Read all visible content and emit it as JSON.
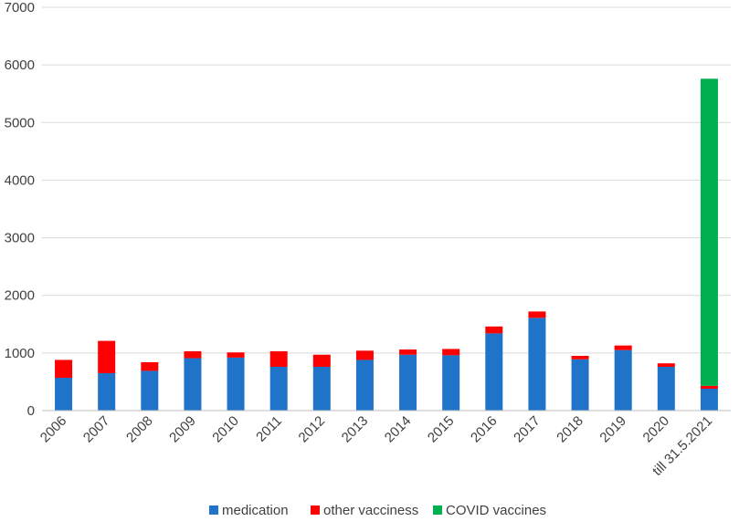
{
  "chart_data": {
    "type": "bar",
    "stacked": true,
    "categories": [
      "2006",
      "2007",
      "2008",
      "2009",
      "2010",
      "2011",
      "2012",
      "2013",
      "2014",
      "2015",
      "2016",
      "2017",
      "2018",
      "2019",
      "2020",
      "till 31.5.2021"
    ],
    "series": [
      {
        "name": "medication",
        "color": "#1f73c9",
        "values": [
          570,
          650,
          690,
          910,
          920,
          760,
          760,
          880,
          970,
          960,
          1340,
          1610,
          890,
          1050,
          760,
          380
        ]
      },
      {
        "name": "other vacciness",
        "color": "#ff0000",
        "values": [
          310,
          560,
          150,
          120,
          90,
          270,
          210,
          160,
          90,
          110,
          120,
          110,
          60,
          80,
          60,
          50
        ]
      },
      {
        "name": "COVID vaccines",
        "color": "#00b050",
        "values": [
          0,
          0,
          0,
          0,
          0,
          0,
          0,
          0,
          0,
          0,
          0,
          0,
          0,
          0,
          0,
          5330
        ]
      }
    ],
    "ylim": [
      0,
      7000
    ],
    "yticks": [
      0,
      1000,
      2000,
      3000,
      4000,
      5000,
      6000,
      7000
    ],
    "grid": true,
    "legend_position": "bottom"
  }
}
